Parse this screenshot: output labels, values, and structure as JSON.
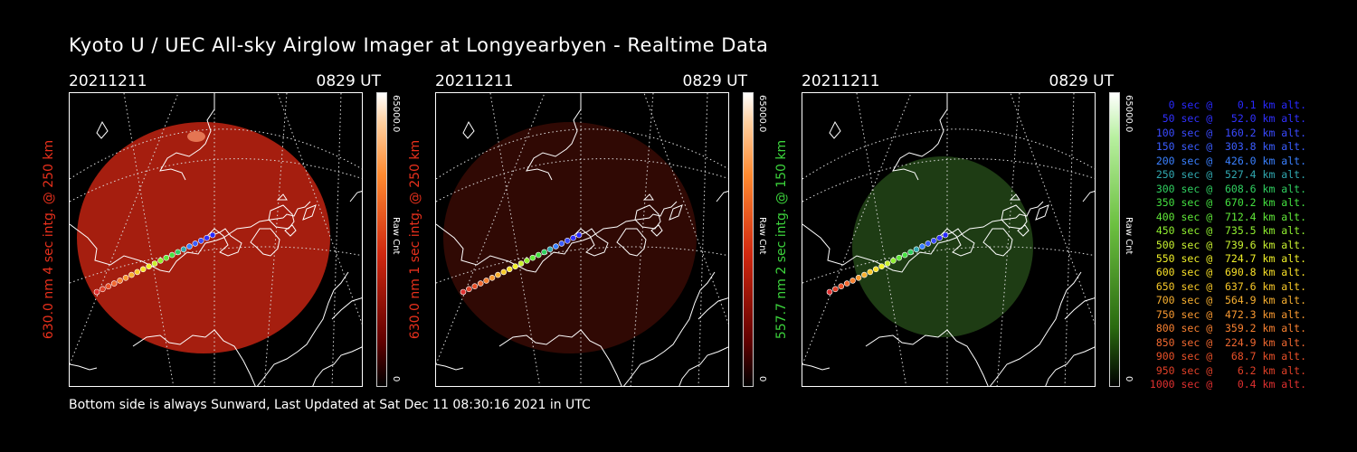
{
  "title": "Kyoto U / UEC All-sky Airglow Imager at Longyearbyen - Realtime Data",
  "footer": "Bottom side is always Sunward, Last Updated at Sat Dec 11 08:30:16 2021 in UTC",
  "panels": [
    {
      "date": "20211211",
      "time": "0829 UT",
      "side_label": "630.0 nm 4 sec intg. @ 250 km",
      "side_color": "#e8301c",
      "cbar_max": "65000.0",
      "cbar_min": "0",
      "cbar_unit": "Raw Cnt",
      "colormap": "red",
      "intensity": 0.75
    },
    {
      "date": "20211211",
      "time": "0829 UT",
      "side_label": "630.0 nm 1 sec intg. @ 250 km",
      "side_color": "#e8301c",
      "cbar_max": "65000.0",
      "cbar_min": "0",
      "cbar_unit": "Raw Cnt",
      "colormap": "red",
      "intensity": 0.22
    },
    {
      "date": "20211211",
      "time": "0829 UT",
      "side_label": "557.7 nm 2 sec intg. @ 150 km",
      "side_color": "#3cd43c",
      "cbar_max": "65000.0",
      "cbar_min": "0",
      "cbar_unit": "Raw Cnt",
      "colormap": "green",
      "intensity": 0.5
    }
  ],
  "trajectory": [
    {
      "sec": "0",
      "alt": "0.1",
      "color": "#2828ff"
    },
    {
      "sec": "50",
      "alt": "52.0",
      "color": "#3030ff"
    },
    {
      "sec": "100",
      "alt": "160.2",
      "color": "#3a4aff"
    },
    {
      "sec": "150",
      "alt": "303.8",
      "color": "#3a5cff"
    },
    {
      "sec": "200",
      "alt": "426.0",
      "color": "#3a80ff"
    },
    {
      "sec": "250",
      "alt": "527.4",
      "color": "#30a8b0"
    },
    {
      "sec": "300",
      "alt": "608.6",
      "color": "#30d060"
    },
    {
      "sec": "350",
      "alt": "670.2",
      "color": "#44e040"
    },
    {
      "sec": "400",
      "alt": "712.4",
      "color": "#60e838"
    },
    {
      "sec": "450",
      "alt": "735.5",
      "color": "#90f030"
    },
    {
      "sec": "500",
      "alt": "739.6",
      "color": "#c8f030"
    },
    {
      "sec": "550",
      "alt": "724.7",
      "color": "#f0f028"
    },
    {
      "sec": "600",
      "alt": "690.8",
      "color": "#f8e028"
    },
    {
      "sec": "650",
      "alt": "637.6",
      "color": "#f8c828"
    },
    {
      "sec": "700",
      "alt": "564.9",
      "color": "#f8b030"
    },
    {
      "sec": "750",
      "alt": "472.3",
      "color": "#f89830"
    },
    {
      "sec": "800",
      "alt": "359.2",
      "color": "#f88030"
    },
    {
      "sec": "850",
      "alt": "224.9",
      "color": "#f06830"
    },
    {
      "sec": "900",
      "alt": "68.7",
      "color": "#e85028"
    },
    {
      "sec": "950",
      "alt": "6.2",
      "color": "#e04028"
    },
    {
      "sec": "1000",
      "alt": "0.4",
      "color": "#e03030"
    }
  ]
}
